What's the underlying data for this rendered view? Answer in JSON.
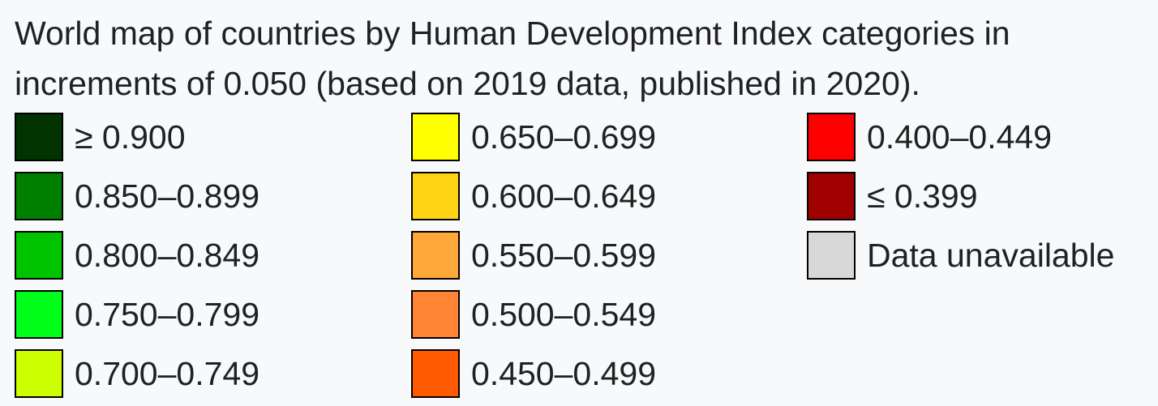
{
  "caption": "World map of countries by Human Development Index categories in increments of 0.050 (based on 2019 data, published in 2020).",
  "legend": {
    "columns": [
      [
        {
          "label": "≥ 0.900",
          "color": "#003300"
        },
        {
          "label": "0.850–0.899",
          "color": "#008000"
        },
        {
          "label": "0.800–0.849",
          "color": "#00c400"
        },
        {
          "label": "0.750–0.799",
          "color": "#00ff1b"
        },
        {
          "label": "0.700–0.749",
          "color": "#ccff00"
        }
      ],
      [
        {
          "label": "0.650–0.699",
          "color": "#ffff00"
        },
        {
          "label": "0.600–0.649",
          "color": "#ffd414"
        },
        {
          "label": "0.550–0.599",
          "color": "#ffa83a"
        },
        {
          "label": "0.500–0.549",
          "color": "#ff8534"
        },
        {
          "label": "0.450–0.499",
          "color": "#ff5a00"
        }
      ],
      [
        {
          "label": "0.400–0.449",
          "color": "#ff0000"
        },
        {
          "label": "≤ 0.399",
          "color": "#a00000"
        },
        {
          "label": "Data unavailable",
          "color": "#d8d8d8"
        }
      ]
    ]
  }
}
